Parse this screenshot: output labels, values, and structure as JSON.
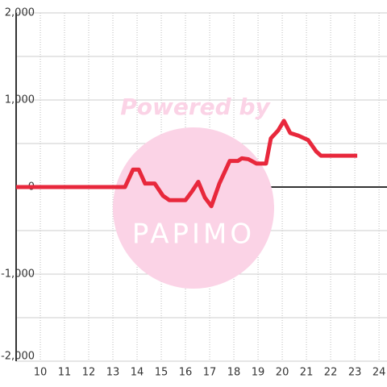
{
  "chart_data": {
    "type": "line",
    "watermark": {
      "top": "Powered by",
      "bottom": "PAPIMO"
    },
    "x": [
      9.0,
      13.5,
      13.83,
      14.07,
      14.33,
      14.73,
      15.07,
      15.33,
      16.0,
      16.27,
      16.53,
      16.8,
      17.07,
      17.4,
      17.83,
      18.17,
      18.33,
      18.6,
      18.93,
      19.33,
      19.53,
      19.83,
      20.07,
      20.33,
      20.67,
      21.07,
      21.4,
      21.6,
      23.1
    ],
    "series": [
      {
        "color": "#e8283c",
        "values": [
          0,
          0,
          200,
          200,
          40,
          40,
          -100,
          -150,
          -150,
          -50,
          60,
          -120,
          -220,
          40,
          300,
          300,
          330,
          320,
          270,
          270,
          560,
          650,
          760,
          620,
          590,
          540,
          410,
          360,
          360
        ]
      }
    ],
    "xlim": [
      9,
      24.33
    ],
    "xticks": [
      10,
      11,
      12,
      13,
      14,
      15,
      16,
      17,
      18,
      19,
      20,
      21,
      22,
      23,
      24
    ],
    "ylim": [
      -2000,
      2000
    ],
    "yticks": [
      {
        "value": -2000,
        "label": "-2,000"
      },
      {
        "value": -1000,
        "label": "-1,000"
      },
      0,
      {
        "value": 1000,
        "label": "1,000"
      },
      {
        "value": 2000,
        "label": "2,000"
      }
    ],
    "minor_yticks": [
      -1500,
      -500,
      500,
      1500
    ],
    "grid": true
  }
}
